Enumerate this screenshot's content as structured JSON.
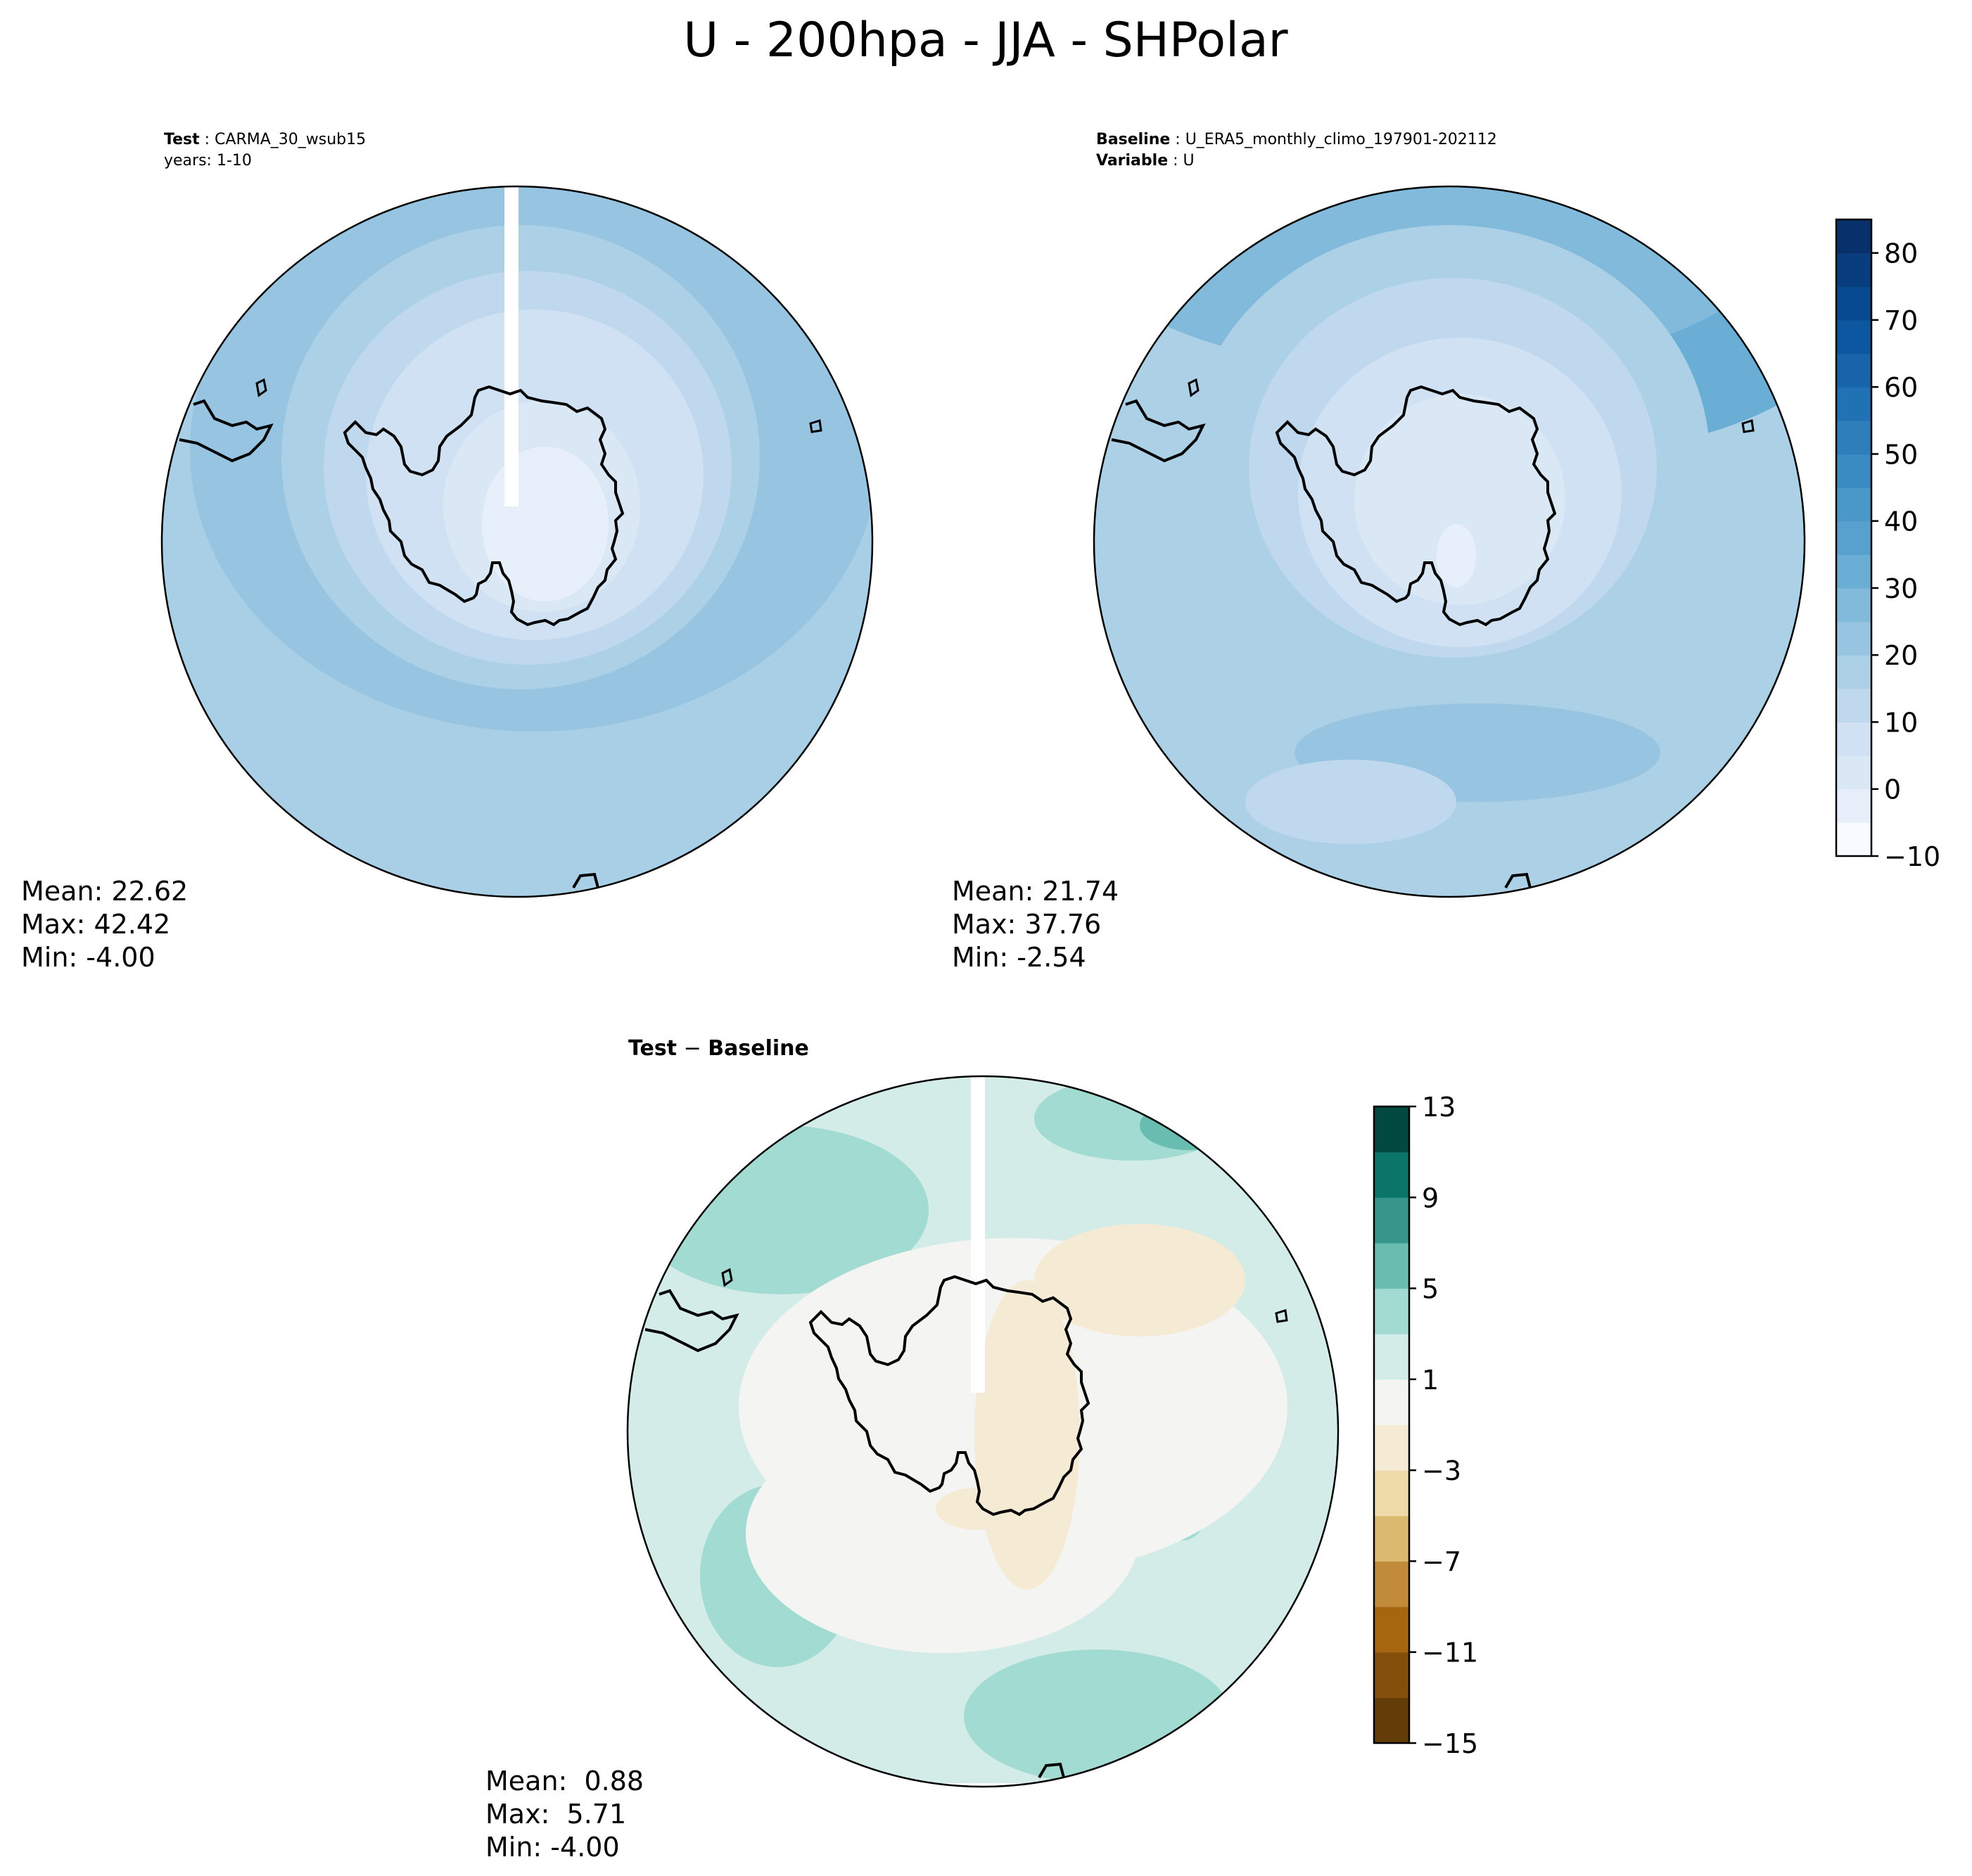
{
  "chart_data": {
    "type": "heatmap",
    "title": "U - 200hpa - JJA - SHPolar",
    "panels": [
      {
        "role": "test",
        "label_key": "Test",
        "label_value": "CARMA_30_wsub15",
        "sublabel": "years: 1-10",
        "projection": "south-polar-stereographic",
        "stats": {
          "mean": "Mean: 22.62",
          "max": "Max: 42.42",
          "min": "Min: -4.00"
        }
      },
      {
        "role": "baseline",
        "label_key": "Baseline",
        "label_value": "U_ERA5_monthly_climo_197901-202112",
        "sublabel_key": "Variable",
        "sublabel_value": "U",
        "projection": "south-polar-stereographic",
        "stats": {
          "mean": "Mean: 21.74",
          "max": "Max: 37.76",
          "min": "Min: -2.54"
        }
      },
      {
        "role": "difference",
        "label_key": "Test",
        "label_op": " − ",
        "label_value": "Baseline",
        "projection": "south-polar-stereographic",
        "stats": {
          "mean": "Mean:  0.88",
          "max": "Max:  5.71",
          "min": "Min: -4.00"
        }
      }
    ],
    "colorbars": [
      {
        "name": "main",
        "range": [
          -10,
          85
        ],
        "levels": [
          -10,
          -5,
          0,
          5,
          10,
          15,
          20,
          25,
          30,
          35,
          40,
          45,
          50,
          55,
          60,
          65,
          70,
          75,
          80,
          85
        ],
        "ticks": [
          -10,
          0,
          10,
          20,
          30,
          40,
          50,
          60,
          70,
          80
        ],
        "tick_labels": [
          "−10",
          "0",
          "10",
          "20",
          "30",
          "40",
          "50",
          "60",
          "70",
          "80"
        ],
        "colormap": [
          "#f7fbff",
          "#e7f0fa",
          "#dae8f6",
          "#cfe1f2",
          "#bfd8ed",
          "#acd0e6",
          "#97c4e0",
          "#82badb",
          "#6aaed6",
          "#58a1cf",
          "#4a98c9",
          "#3a8bc2",
          "#2e7ebc",
          "#2171b5",
          "#1764ab",
          "#0d57a1",
          "#084a91",
          "#083d7f",
          "#08306b"
        ]
      },
      {
        "name": "diff",
        "range": [
          -15,
          13
        ],
        "levels": [
          -15,
          -13,
          -11,
          -9,
          -7,
          -5,
          -3,
          -1,
          1,
          3,
          5,
          7,
          9,
          11,
          13
        ],
        "ticks": [
          -15,
          -11,
          -7,
          -3,
          1,
          5,
          9,
          13
        ],
        "tick_labels": [
          "−15",
          "−11",
          "−7",
          "−3",
          "1",
          "5",
          "9",
          "13"
        ],
        "colormap": [
          "#643c07",
          "#844e0b",
          "#a5660f",
          "#c28b3a",
          "#d9ba6e",
          "#eddbaa",
          "#f5ead3",
          "#f4f4f3",
          "#d4ece8",
          "#a2dbd2",
          "#69bdb0",
          "#36968c",
          "#0b756a",
          "#01493f"
        ]
      }
    ]
  }
}
